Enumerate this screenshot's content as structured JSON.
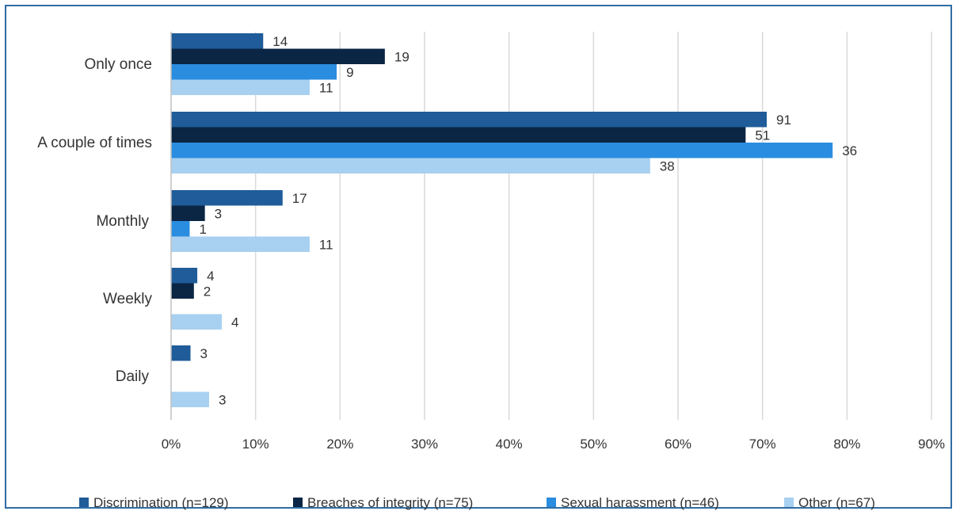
{
  "chart_data": {
    "type": "bar",
    "orientation": "horizontal",
    "categories": [
      "Only once",
      "A couple of times",
      "Monthly",
      "Weekly",
      "Daily"
    ],
    "series": [
      {
        "name": "Discrimination (n=129)",
        "color": "#1f5c99",
        "values": [
          10.9,
          70.5,
          13.2,
          3.1,
          2.3
        ],
        "labels": [
          "14",
          "91",
          "17",
          "4",
          "3"
        ]
      },
      {
        "name": "Breaches of integrity (n=75)",
        "color": "#0b2545",
        "values": [
          25.3,
          68.0,
          4.0,
          2.7,
          null
        ],
        "labels": [
          "19",
          "51",
          "3",
          "2",
          ""
        ]
      },
      {
        "name": "Sexual harassment (n=46)",
        "color": "#2a8de0",
        "values": [
          19.6,
          78.3,
          2.2,
          null,
          null
        ],
        "labels": [
          "9",
          "36",
          "1",
          "",
          ""
        ]
      },
      {
        "name": "Other (n=67)",
        "color": "#a8d0f0",
        "values": [
          16.4,
          56.7,
          16.4,
          6.0,
          4.5
        ],
        "labels": [
          "11",
          "38",
          "11",
          "4",
          "3"
        ]
      }
    ],
    "xlim": [
      0,
      90
    ],
    "xticks": [
      "0%",
      "10%",
      "20%",
      "30%",
      "40%",
      "50%",
      "60%",
      "70%",
      "80%",
      "90%"
    ],
    "grid": "vertical",
    "legend_position": "bottom"
  }
}
